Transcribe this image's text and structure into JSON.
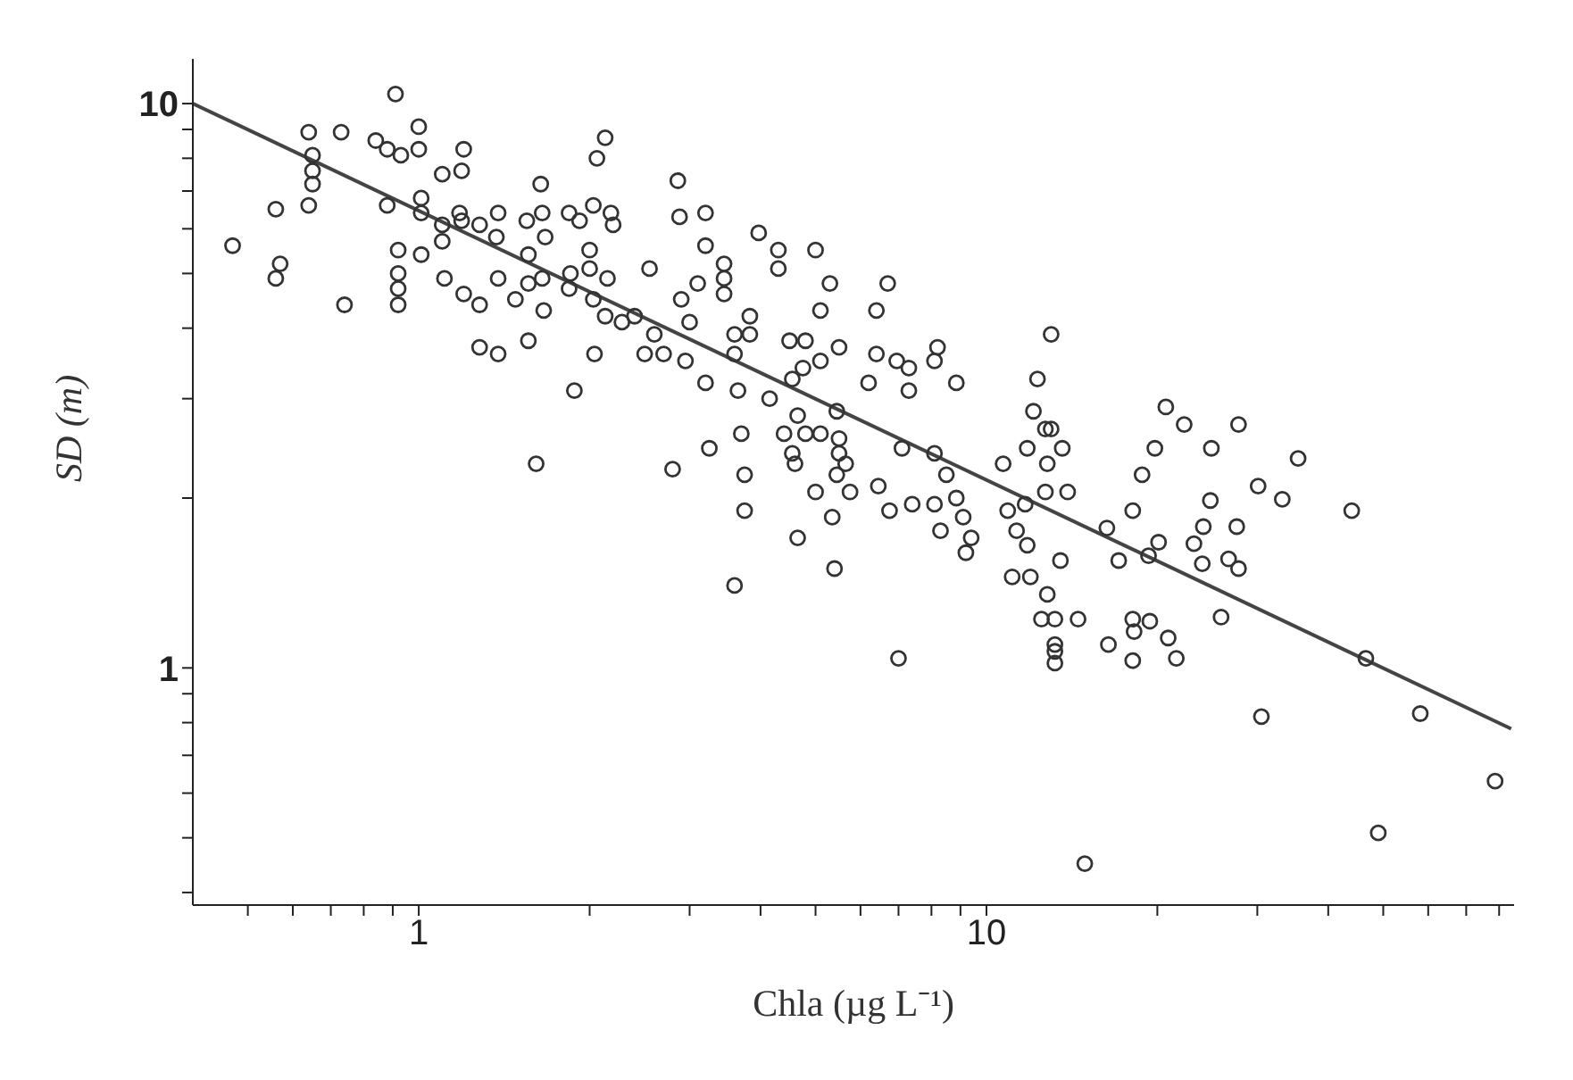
{
  "chart_data": {
    "type": "scatter",
    "xlabel": "Chla (µg L⁻¹)",
    "ylabel": "SD (m)",
    "log": "xy",
    "xlim": [
      0.4,
      85
    ],
    "ylim": [
      0.38,
      12
    ],
    "xticks": [
      {
        "value": 0.5,
        "label": null
      },
      {
        "value": 0.6,
        "label": null
      },
      {
        "value": 0.7,
        "label": null
      },
      {
        "value": 0.8,
        "label": null
      },
      {
        "value": 0.9,
        "label": null
      },
      1,
      {
        "value": 2,
        "label": null
      },
      {
        "value": 3,
        "label": null
      },
      {
        "value": 4,
        "label": null
      },
      {
        "value": 5,
        "label": null
      },
      {
        "value": 6,
        "label": null
      },
      {
        "value": 7,
        "label": null
      },
      {
        "value": 8,
        "label": null
      },
      {
        "value": 9,
        "label": null
      },
      10,
      {
        "value": 20,
        "label": null
      },
      {
        "value": 30,
        "label": null
      },
      {
        "value": 40,
        "label": null
      },
      {
        "value": 50,
        "label": null
      },
      {
        "value": 60,
        "label": null
      },
      {
        "value": 70,
        "label": null
      },
      {
        "value": 80,
        "label": null
      }
    ],
    "yticks": [
      {
        "value": 0.4,
        "label": null
      },
      {
        "value": 0.5,
        "label": null
      },
      {
        "value": 0.6,
        "label": null
      },
      {
        "value": 0.7,
        "label": null
      },
      {
        "value": 0.8,
        "label": null
      },
      {
        "value": 0.9,
        "label": null
      },
      1,
      {
        "value": 2,
        "label": null
      },
      {
        "value": 3,
        "label": null
      },
      {
        "value": 4,
        "label": null
      },
      {
        "value": 5,
        "label": null
      },
      {
        "value": 6,
        "label": null
      },
      {
        "value": 7,
        "label": null
      },
      {
        "value": 8,
        "label": null
      },
      {
        "value": 9,
        "label": null
      },
      10
    ],
    "series": [
      {
        "color": "#333333",
        "marker": "circle",
        "x": [
          0.91,
          0.64,
          0.73,
          0.65,
          0.65,
          0.65,
          0.64,
          0.56,
          0.47,
          0.57,
          0.56,
          0.74,
          0.84,
          0.88,
          0.93,
          1.0,
          1.0,
          1.2,
          1.1,
          1.19,
          0.88,
          1.01,
          1.01,
          1.1,
          1.1,
          1.18,
          1.19,
          1.28,
          1.38,
          1.37,
          0.92,
          0.92,
          0.92,
          0.92,
          1.01,
          1.11,
          1.2,
          1.28,
          1.38,
          1.28,
          1.38,
          1.56,
          1.64,
          1.55,
          1.65,
          1.67,
          1.56,
          1.56,
          1.65,
          1.48,
          1.66,
          1.84,
          1.92,
          2.03,
          2.18,
          2.2,
          2.0,
          2.0,
          1.85,
          2.15,
          1.84,
          2.03,
          2.13,
          2.28,
          2.13,
          2.06,
          2.04,
          1.88,
          1.61,
          2.86,
          2.88,
          3.2,
          3.2,
          3.97,
          4.3,
          4.3,
          5.0,
          5.3,
          6.7,
          6.4,
          5.1,
          3.45,
          3.45,
          3.45,
          3.1,
          2.55,
          2.9,
          3.0,
          3.83,
          3.6,
          3.83,
          3.6,
          4.5,
          4.8,
          5.1,
          4.75,
          4.55,
          5.5,
          6.4,
          6.95,
          7.3,
          8.2,
          8.1,
          8.85,
          7.3,
          6.2,
          2.4,
          2.6,
          2.5,
          2.7,
          2.95,
          3.2,
          3.65,
          4.15,
          4.65,
          4.8,
          4.4,
          4.55,
          4.6,
          5.45,
          5.1,
          5.5,
          5.5,
          5.65,
          5.45,
          5.75,
          3.7,
          3.25,
          3.75,
          2.8,
          3.75,
          5.0,
          5.35,
          4.65,
          6.45,
          6.75,
          7.4,
          8.1,
          8.3,
          3.6,
          5.4,
          7.1,
          8.1,
          8.5,
          8.85,
          9.1,
          9.4,
          9.2,
          10.7,
          10.9,
          11.3,
          11.8,
          11.1,
          11.95,
          13.0,
          12.3,
          12.1,
          12.7,
          11.8,
          12.8,
          12.7,
          12.8,
          13.0,
          13.6,
          13.9,
          11.7,
          13.5,
          12.5,
          13.2,
          14.5,
          13.2,
          13.2,
          13.2,
          16.4,
          16.3,
          17.1,
          18.1,
          19.3,
          20.1,
          18.1,
          18.2,
          19.4,
          18.1,
          20.9,
          21.6,
          25.9,
          18.8,
          19.8,
          20.7,
          22.3,
          24.9,
          27.8,
          24.8,
          24.1,
          27.6,
          23.2,
          24,
          26.7,
          27.8,
          30.1,
          33.2,
          35.4,
          44,
          46.6,
          30.5,
          58.1,
          49,
          78.7,
          14.9,
          7.0
        ],
        "values": [
          10.4,
          8.9,
          8.9,
          8.1,
          7.6,
          7.2,
          6.6,
          6.5,
          5.6,
          5.2,
          4.9,
          4.4,
          8.6,
          8.3,
          8.1,
          9.1,
          8.3,
          8.3,
          7.5,
          7.6,
          6.6,
          6.8,
          6.4,
          6.1,
          5.7,
          6.4,
          6.2,
          6.1,
          6.4,
          5.8,
          5.5,
          5.0,
          4.7,
          4.4,
          5.4,
          4.9,
          4.6,
          4.4,
          4.9,
          3.7,
          3.6,
          3.8,
          7.2,
          6.2,
          6.4,
          5.8,
          5.4,
          4.8,
          4.9,
          4.5,
          4.3,
          6.4,
          6.2,
          6.6,
          6.4,
          6.1,
          5.5,
          5.1,
          5.0,
          4.9,
          4.7,
          4.5,
          4.2,
          4.1,
          8.7,
          8.0,
          3.6,
          3.1,
          2.3,
          7.3,
          6.3,
          6.4,
          5.6,
          5.9,
          5.5,
          5.1,
          5.5,
          4.8,
          4.8,
          4.3,
          4.3,
          5.2,
          4.9,
          4.6,
          4.8,
          5.1,
          4.5,
          4.1,
          4.2,
          3.9,
          3.9,
          3.6,
          3.8,
          3.8,
          3.5,
          3.4,
          3.25,
          3.7,
          3.6,
          3.5,
          3.4,
          3.7,
          3.5,
          3.2,
          3.1,
          3.2,
          4.2,
          3.9,
          3.6,
          3.6,
          3.5,
          3.2,
          3.1,
          3.0,
          2.8,
          2.6,
          2.6,
          2.4,
          2.3,
          2.85,
          2.6,
          2.55,
          2.4,
          2.3,
          2.2,
          2.05,
          2.6,
          2.45,
          2.2,
          2.25,
          1.9,
          2.05,
          1.85,
          1.7,
          2.1,
          1.9,
          1.95,
          1.95,
          1.75,
          1.4,
          1.5,
          2.45,
          2.4,
          2.2,
          2.0,
          1.85,
          1.7,
          1.6,
          2.3,
          1.9,
          1.75,
          1.65,
          1.45,
          1.45,
          3.9,
          3.25,
          2.85,
          2.65,
          2.45,
          2.3,
          2.05,
          1.35,
          2.65,
          2.45,
          2.05,
          1.95,
          1.55,
          1.22,
          1.22,
          1.22,
          1.1,
          1.07,
          1.02,
          1.1,
          1.77,
          1.55,
          1.9,
          1.58,
          1.67,
          1.22,
          1.16,
          1.21,
          1.03,
          1.13,
          1.04,
          1.23,
          2.2,
          2.45,
          2.9,
          2.7,
          2.45,
          2.7,
          1.98,
          1.78,
          1.78,
          1.66,
          1.53,
          1.56,
          1.5,
          2.1,
          1.99,
          2.35,
          1.9,
          1.04,
          0.82,
          0.83,
          0.51,
          0.63,
          0.45,
          1.04
        ]
      },
      {
        "type": "line",
        "color": "#444444",
        "x": [
          0.4,
          84
        ],
        "values": [
          10,
          0.78
        ]
      }
    ]
  }
}
